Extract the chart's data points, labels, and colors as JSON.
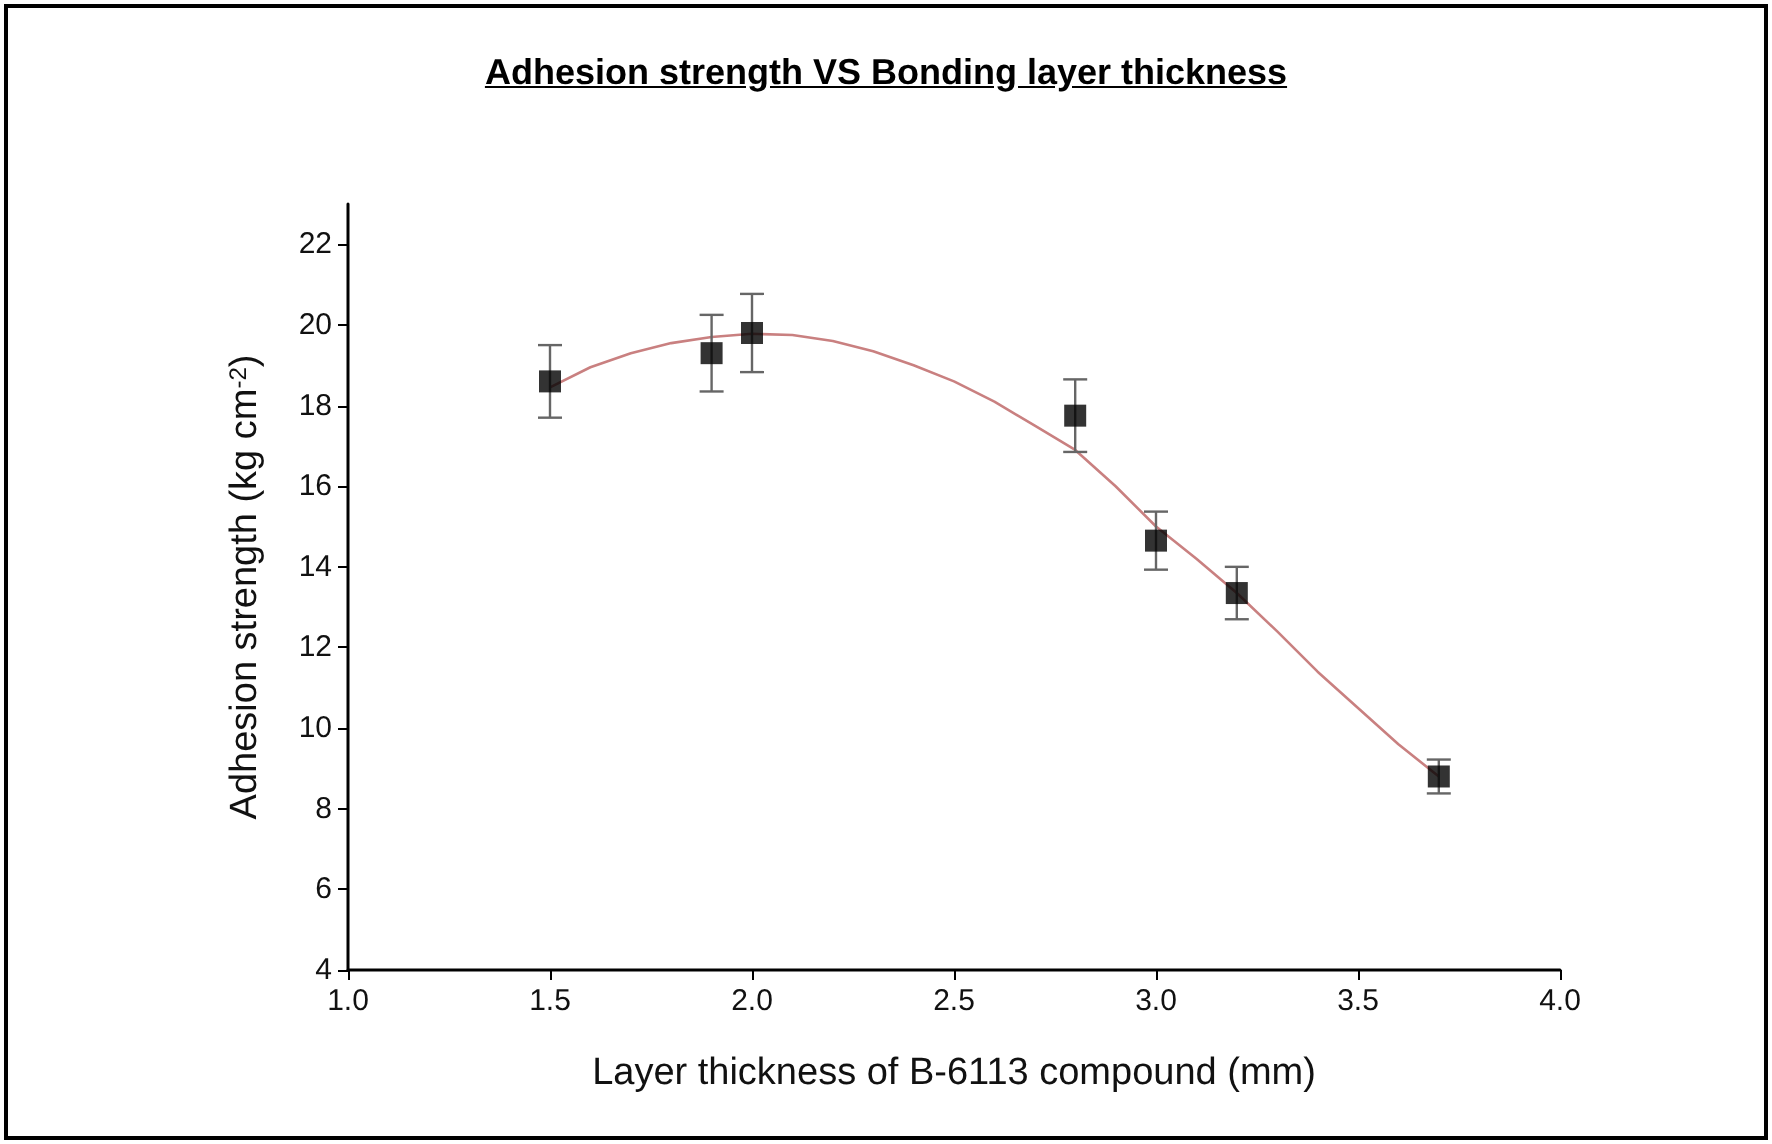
{
  "chart_data": {
    "type": "scatter",
    "title": "Adhesion strength VS Bonding layer thickness",
    "xlabel": "Layer thickness of B-6113 compound (mm)",
    "ylabel": "Adhesion strength (kg cm$^{-2}$)",
    "series": [
      {
        "type": "scatter",
        "color": "#000000",
        "marker": "square",
        "x": [
          1.5,
          1.9,
          2.0,
          2.8,
          3.0,
          3.2,
          3.7
        ],
        "values": [
          18.6,
          19.3,
          19.8,
          17.75,
          14.65,
          13.35,
          8.8
        ],
        "errors": [
          0.9,
          0.95,
          0.97,
          0.9,
          0.72,
          0.65,
          0.42
        ]
      },
      {
        "type": "line",
        "color": "#c98080",
        "marker": "none",
        "line_style": "solid",
        "x": [
          1.5,
          1.6,
          1.7,
          1.8,
          1.9,
          2.0,
          2.1,
          2.2,
          2.3,
          2.4,
          2.5,
          2.6,
          2.7,
          2.8,
          2.9,
          3.0,
          3.1,
          3.2,
          3.3,
          3.4,
          3.5,
          3.6,
          3.7
        ],
        "values": [
          18.45,
          18.95,
          19.3,
          19.55,
          19.7,
          19.78,
          19.75,
          19.6,
          19.35,
          19.0,
          18.6,
          18.1,
          17.5,
          16.9,
          16.0,
          15.0,
          14.2,
          13.35,
          12.4,
          11.4,
          10.5,
          9.6,
          8.8
        ]
      }
    ],
    "xlim": [
      1.0,
      4.0
    ],
    "xticks": [
      {
        "value": 1.0,
        "label": "1.0"
      },
      1.5,
      {
        "value": 2.0,
        "label": "2.0"
      },
      2.5,
      {
        "value": 3.0,
        "label": "3.0"
      },
      3.5,
      {
        "value": 4.0,
        "label": "4.0"
      }
    ],
    "ylim": [
      4,
      23
    ],
    "yticks": [
      4,
      6,
      8,
      10,
      12,
      14,
      16,
      18,
      20,
      22
    ],
    "grid": false
  }
}
